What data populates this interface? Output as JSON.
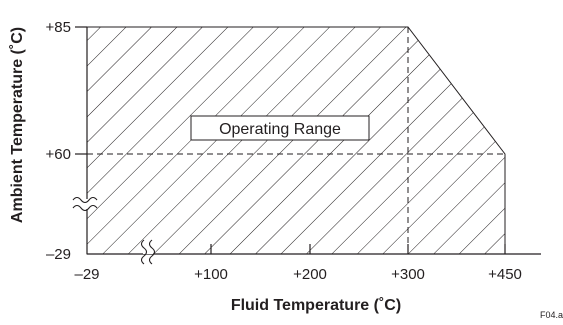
{
  "chart_data": {
    "type": "area",
    "title": "",
    "xlabel": "Fluid Temperature (˚C)",
    "ylabel": "Ambient Temperature (˚C)",
    "x_ticks": [
      {
        "value": -29,
        "label": "–29"
      },
      {
        "value": 100,
        "label": "+100"
      },
      {
        "value": 200,
        "label": "+200"
      },
      {
        "value": 300,
        "label": "+300"
      },
      {
        "value": 450,
        "label": "+450"
      }
    ],
    "y_ticks": [
      {
        "value": -29,
        "label": "–29"
      },
      {
        "value": 60,
        "label": "+60"
      },
      {
        "value": 85,
        "label": "+85"
      }
    ],
    "x_axis_break": true,
    "y_axis_break": true,
    "series": [
      {
        "fill": "hatched",
        "points": [
          {
            "x": -29,
            "y": -29
          },
          {
            "x": -29,
            "y": 85
          },
          {
            "x": 300,
            "y": 85
          },
          {
            "x": 450,
            "y": 60
          },
          {
            "x": 450,
            "y": -29
          }
        ]
      }
    ],
    "reference_lines": [
      {
        "axis": "y",
        "value": 60,
        "style": "dashed"
      },
      {
        "axis": "x",
        "value": 300,
        "style": "dashed"
      }
    ],
    "annotation": "Operating Range",
    "figure_id": "F04.ai",
    "grid": false
  }
}
